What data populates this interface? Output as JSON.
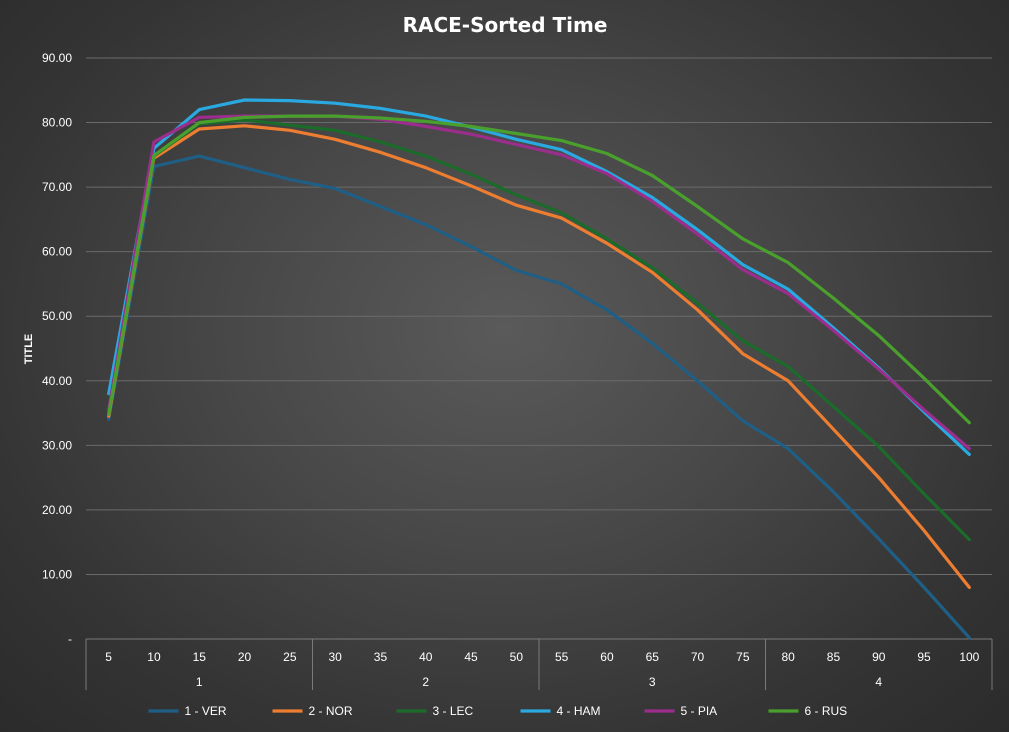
{
  "chart_data": {
    "type": "line",
    "title": "RACE-Sorted Time",
    "ylabel": "TITLE",
    "xlabel": "",
    "ylim": [
      0,
      90
    ],
    "y_tick_labels": [
      "-",
      "10.00",
      "20.00",
      "30.00",
      "40.00",
      "50.00",
      "60.00",
      "70.00",
      "80.00",
      "90.00"
    ],
    "x": [
      "5",
      "10",
      "15",
      "20",
      "25",
      "30",
      "35",
      "40",
      "45",
      "50",
      "55",
      "60",
      "65",
      "70",
      "75",
      "80",
      "85",
      "90",
      "95",
      "100"
    ],
    "x_groups": [
      {
        "label": "1",
        "from": 0,
        "to": 4
      },
      {
        "label": "2",
        "from": 5,
        "to": 9
      },
      {
        "label": "3",
        "from": 10,
        "to": 14
      },
      {
        "label": "4",
        "from": 15,
        "to": 19
      }
    ],
    "grid": true,
    "legend_position": "bottom",
    "series": [
      {
        "name": "1 - VER",
        "color": "#1f5f86",
        "values": [
          34.0,
          73.2,
          74.8,
          73.0,
          71.2,
          69.8,
          67.0,
          64.2,
          60.8,
          57.1,
          55.0,
          51.0,
          45.8,
          40.0,
          33.8,
          29.5,
          22.8,
          15.5,
          8.0,
          0.2
        ]
      },
      {
        "name": "2 - NOR",
        "color": "#ed7d31",
        "values": [
          34.5,
          74.5,
          79.0,
          79.5,
          78.8,
          77.4,
          75.4,
          73.0,
          70.2,
          67.2,
          65.2,
          61.3,
          56.8,
          51.0,
          44.2,
          40.0,
          32.5,
          25.0,
          16.8,
          8.0
        ]
      },
      {
        "name": "3 - LEC",
        "color": "#1b6b2a",
        "values": [
          35.0,
          74.8,
          79.8,
          80.4,
          79.6,
          78.8,
          77.0,
          74.8,
          72.0,
          68.8,
          66.0,
          62.0,
          57.5,
          52.0,
          46.2,
          42.2,
          36.0,
          29.8,
          22.5,
          15.4
        ]
      },
      {
        "name": "4 - HAM",
        "color": "#2aa8e0",
        "values": [
          38.0,
          76.0,
          82.0,
          83.5,
          83.4,
          83.0,
          82.2,
          81.0,
          79.3,
          77.4,
          75.8,
          72.4,
          68.4,
          63.4,
          58.0,
          54.2,
          48.2,
          42.0,
          35.2,
          28.6
        ]
      },
      {
        "name": "5 - PIA",
        "color": "#9b2d8c",
        "values": [
          35.5,
          77.0,
          80.8,
          81.0,
          81.0,
          81.0,
          80.5,
          79.4,
          78.2,
          76.6,
          75.0,
          72.1,
          67.8,
          62.7,
          57.2,
          53.5,
          47.8,
          41.8,
          35.5,
          29.5
        ]
      },
      {
        "name": "6 - RUS",
        "color": "#4aa02c",
        "values": [
          34.8,
          74.9,
          80.0,
          80.8,
          81.0,
          81.0,
          80.7,
          80.2,
          79.4,
          78.3,
          77.2,
          75.2,
          71.8,
          67.0,
          62.0,
          58.3,
          52.8,
          47.0,
          40.4,
          33.5
        ]
      }
    ]
  }
}
